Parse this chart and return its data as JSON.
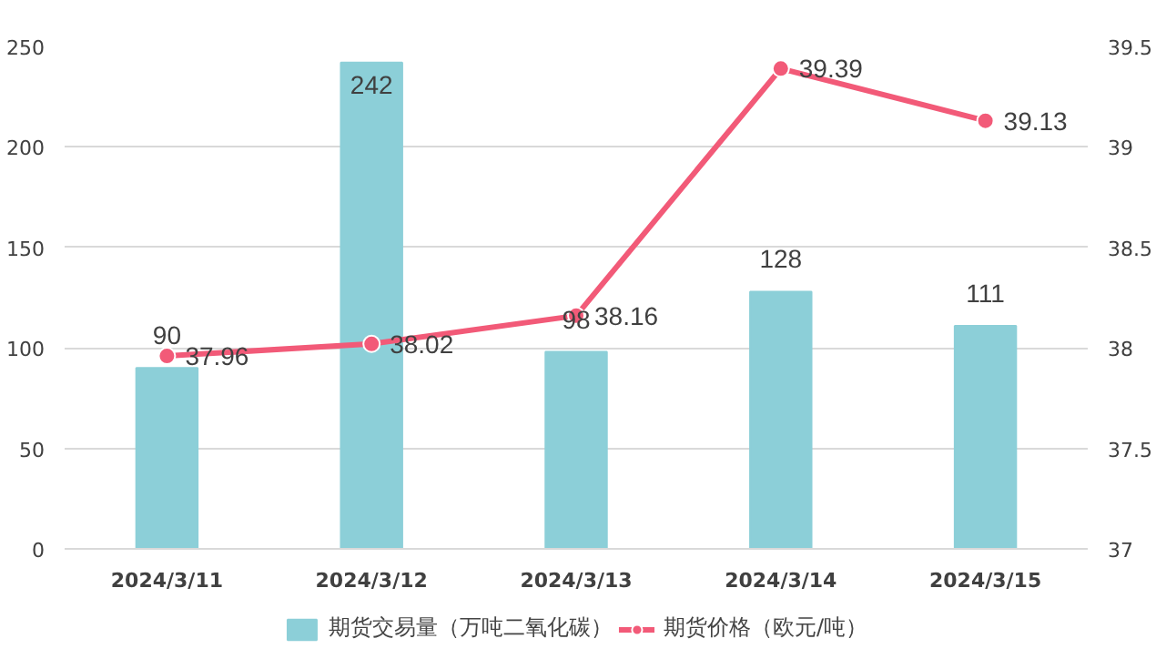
{
  "chart_data": {
    "type": "bar",
    "categories": [
      "2024/3/11",
      "2024/3/12",
      "2024/3/13",
      "2024/3/14",
      "2024/3/15"
    ],
    "series": [
      {
        "name": "期货交易量（万吨二氧化碳）",
        "color": "#8ccfd8",
        "values": [
          90,
          242,
          98,
          128,
          111
        ]
      },
      {
        "name": "期货价格（欧元/吨）",
        "type": "line",
        "axis": "y2",
        "color": "#f25a78",
        "values": [
          37.96,
          38.02,
          38.16,
          39.39,
          39.13
        ]
      }
    ],
    "ylim": [
      0,
      250
    ],
    "yticks": [
      0,
      50,
      100,
      150,
      200,
      250
    ],
    "y2lim": [
      37,
      39.5
    ],
    "y2ticks": [
      37,
      37.5,
      38,
      38.5,
      39,
      39.5
    ],
    "grid": "y",
    "legend": "bottom",
    "data_labels": true,
    "marker": "circle"
  }
}
